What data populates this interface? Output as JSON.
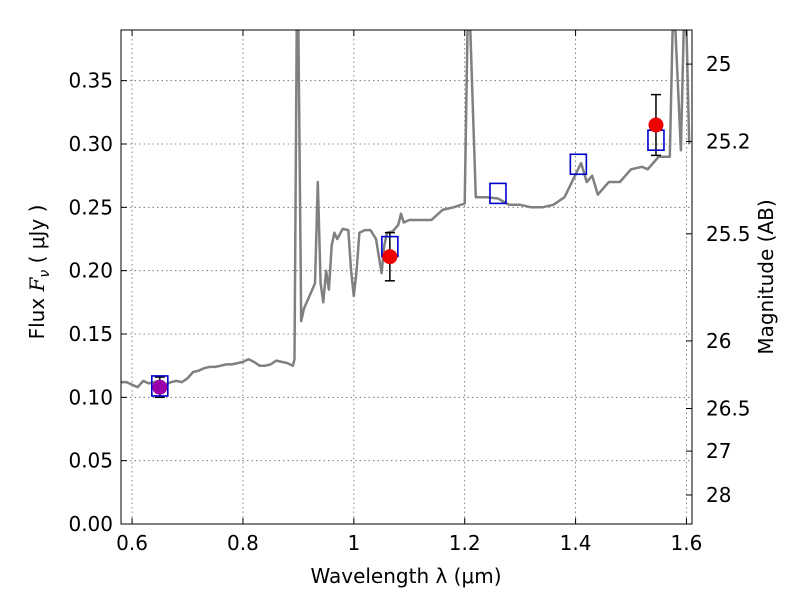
{
  "chart_data": {
    "type": "line",
    "xlabel": "Wavelength  λ (μm)",
    "ylabel": "Flux  F_ν  ( μJy )",
    "ylabel_right": "Magnitude (AB)",
    "xlim": [
      0.58,
      1.61
    ],
    "ylim": [
      0.0,
      0.39
    ],
    "x_ticks": [
      {
        "value": 0.6,
        "label": "0.6"
      },
      {
        "value": 0.8,
        "label": "0.8"
      },
      {
        "value": 1.0,
        "label": "1"
      },
      {
        "value": 1.2,
        "label": "1.2"
      },
      {
        "value": 1.4,
        "label": "1.4"
      },
      {
        "value": 1.6,
        "label": "1.6"
      }
    ],
    "y_ticks": [
      {
        "value": 0.0,
        "label": "0.00"
      },
      {
        "value": 0.05,
        "label": "0.05"
      },
      {
        "value": 0.1,
        "label": "0.10"
      },
      {
        "value": 0.15,
        "label": "0.15"
      },
      {
        "value": 0.2,
        "label": "0.20"
      },
      {
        "value": 0.25,
        "label": "0.25"
      },
      {
        "value": 0.3,
        "label": "0.30"
      },
      {
        "value": 0.35,
        "label": "0.35"
      }
    ],
    "right_ticks": [
      {
        "mag": 25.0,
        "label": "25"
      },
      {
        "mag": 25.2,
        "label": "25.2"
      },
      {
        "mag": 25.5,
        "label": "25.5"
      },
      {
        "mag": 26.0,
        "label": "26"
      },
      {
        "mag": 26.5,
        "label": "26.5"
      },
      {
        "mag": 27.0,
        "label": "27"
      },
      {
        "mag": 28.0,
        "label": "28"
      }
    ],
    "grid": true,
    "colors": {
      "sed": "#808080",
      "model_box": "#0000cc",
      "observed": "#ee0000",
      "first_point": "#9900aa",
      "error_bar": "#000000",
      "grid": "#000000"
    },
    "series": [
      {
        "type": "line",
        "x": [
          0.58,
          0.59,
          0.6,
          0.61,
          0.62,
          0.63,
          0.64,
          0.65,
          0.66,
          0.67,
          0.68,
          0.69,
          0.7,
          0.71,
          0.72,
          0.73,
          0.74,
          0.75,
          0.76,
          0.77,
          0.78,
          0.79,
          0.8,
          0.81,
          0.82,
          0.83,
          0.84,
          0.85,
          0.86,
          0.87,
          0.88,
          0.89,
          0.893,
          0.897,
          0.9,
          0.905,
          0.91,
          0.92,
          0.93,
          0.935,
          0.94,
          0.945,
          0.95,
          0.955,
          0.96,
          0.965,
          0.97,
          0.98,
          0.99,
          0.995,
          1.0,
          1.005,
          1.01,
          1.02,
          1.03,
          1.04,
          1.05,
          1.055,
          1.06,
          1.07,
          1.08,
          1.085,
          1.09,
          1.1,
          1.12,
          1.14,
          1.16,
          1.18,
          1.2,
          1.205,
          1.21,
          1.22,
          1.24,
          1.26,
          1.28,
          1.3,
          1.32,
          1.34,
          1.36,
          1.38,
          1.4,
          1.41,
          1.42,
          1.43,
          1.44,
          1.46,
          1.48,
          1.5,
          1.52,
          1.53,
          1.54,
          1.55,
          1.56,
          1.57,
          1.575,
          1.58,
          1.59,
          1.595,
          1.6,
          1.605
        ],
        "y": [
          0.112,
          0.112,
          0.11,
          0.108,
          0.113,
          0.111,
          0.112,
          0.113,
          0.11,
          0.112,
          0.113,
          0.112,
          0.115,
          0.12,
          0.121,
          0.123,
          0.124,
          0.124,
          0.125,
          0.126,
          0.126,
          0.127,
          0.128,
          0.13,
          0.128,
          0.125,
          0.125,
          0.126,
          0.129,
          0.128,
          0.127,
          0.125,
          0.13,
          0.39,
          0.39,
          0.16,
          0.17,
          0.18,
          0.19,
          0.27,
          0.19,
          0.175,
          0.2,
          0.185,
          0.22,
          0.23,
          0.225,
          0.233,
          0.232,
          0.2,
          0.18,
          0.2,
          0.23,
          0.232,
          0.232,
          0.225,
          0.198,
          0.22,
          0.23,
          0.231,
          0.236,
          0.245,
          0.238,
          0.24,
          0.24,
          0.24,
          0.248,
          0.25,
          0.253,
          0.39,
          0.39,
          0.258,
          0.258,
          0.257,
          0.252,
          0.252,
          0.25,
          0.25,
          0.252,
          0.258,
          0.276,
          0.285,
          0.27,
          0.275,
          0.26,
          0.27,
          0.27,
          0.28,
          0.282,
          0.28,
          0.285,
          0.29,
          0.29,
          0.29,
          0.39,
          0.39,
          0.295,
          0.39,
          0.39,
          0.3
        ]
      },
      {
        "type": "model_photometry",
        "x": [
          0.65,
          1.065,
          1.26,
          1.405,
          1.545
        ],
        "y": [
          0.109,
          0.219,
          0.261,
          0.284,
          0.303
        ]
      },
      {
        "type": "observed_photometry",
        "x": [
          0.65,
          1.065,
          1.545
        ],
        "y": [
          0.108,
          0.211,
          0.315
        ],
        "yerr": [
          0.008,
          0.019,
          0.024
        ]
      }
    ]
  }
}
